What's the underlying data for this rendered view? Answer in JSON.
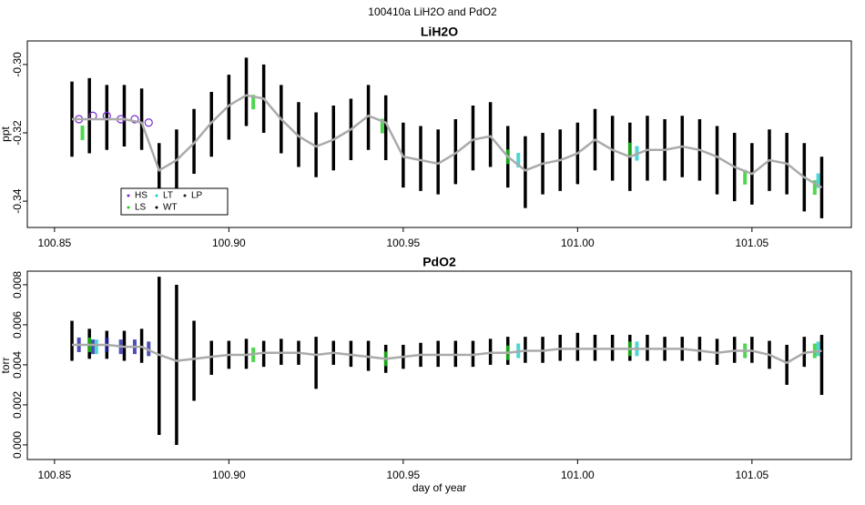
{
  "title": "100410a   LiH2O and PdO2",
  "chart_data": [
    {
      "type": "line",
      "title": "LiH2O",
      "ylabel": "ppt",
      "xlim": [
        100.8422,
        101.0785
      ],
      "xticks": [
        100.85,
        {
          "value": 100.9,
          "label": "100.90"
        },
        100.95,
        {
          "value": 101.0,
          "label": "101.00"
        },
        101.05
      ],
      "ylim": [
        -0.3477,
        -0.2931
      ],
      "yticks": [
        {
          "value": -0.3,
          "label": "-0.30"
        },
        -0.32,
        -0.34
      ],
      "color": "#aaaaaa",
      "range_color": "#000000",
      "x": [
        100.855,
        100.86,
        100.865,
        100.87,
        100.875,
        100.88,
        100.885,
        100.89,
        100.895,
        100.9,
        100.905,
        100.91,
        100.915,
        100.92,
        100.925,
        100.93,
        100.935,
        100.94,
        100.945,
        100.95,
        100.955,
        100.96,
        100.965,
        100.97,
        100.975,
        100.98,
        100.985,
        100.99,
        100.995,
        101.0,
        101.005,
        101.01,
        101.015,
        101.02,
        101.025,
        101.03,
        101.035,
        101.04,
        101.045,
        101.05,
        101.055,
        101.06,
        101.065,
        101.07
      ],
      "values": [
        -0.316,
        -0.316,
        -0.316,
        -0.316,
        -0.317,
        -0.331,
        -0.328,
        -0.323,
        -0.317,
        -0.312,
        -0.309,
        -0.31,
        -0.316,
        -0.321,
        -0.324,
        -0.322,
        -0.319,
        -0.315,
        -0.317,
        -0.327,
        -0.328,
        -0.329,
        -0.326,
        -0.322,
        -0.321,
        -0.327,
        -0.331,
        -0.329,
        -0.328,
        -0.326,
        -0.322,
        -0.325,
        -0.327,
        -0.325,
        -0.325,
        -0.324,
        -0.325,
        -0.327,
        -0.33,
        -0.332,
        -0.328,
        -0.329,
        -0.333,
        -0.336
      ],
      "low": [
        -0.327,
        -0.326,
        -0.325,
        -0.324,
        -0.325,
        -0.34,
        -0.337,
        -0.332,
        -0.327,
        -0.322,
        -0.318,
        -0.32,
        -0.326,
        -0.33,
        -0.333,
        -0.331,
        -0.328,
        -0.325,
        -0.328,
        -0.336,
        -0.337,
        -0.338,
        -0.335,
        -0.331,
        -0.33,
        -0.336,
        -0.342,
        -0.338,
        -0.337,
        -0.335,
        -0.331,
        -0.334,
        -0.337,
        -0.334,
        -0.334,
        -0.333,
        -0.334,
        -0.338,
        -0.34,
        -0.341,
        -0.337,
        -0.338,
        -0.343,
        -0.345
      ],
      "high": [
        -0.305,
        -0.304,
        -0.306,
        -0.306,
        -0.307,
        -0.323,
        -0.319,
        -0.313,
        -0.308,
        -0.303,
        -0.298,
        -0.3,
        -0.306,
        -0.311,
        -0.314,
        -0.312,
        -0.31,
        -0.306,
        -0.309,
        -0.317,
        -0.318,
        -0.319,
        -0.316,
        -0.312,
        -0.311,
        -0.318,
        -0.321,
        -0.32,
        -0.319,
        -0.317,
        -0.313,
        -0.315,
        -0.317,
        -0.315,
        -0.316,
        -0.315,
        -0.316,
        -0.318,
        -0.32,
        -0.323,
        -0.319,
        -0.32,
        -0.323,
        -0.327
      ],
      "series": [
        {
          "name": "HS",
          "color": "#7a2bd6",
          "x": [
            100.857,
            100.861,
            100.865,
            100.869,
            100.873,
            100.877
          ],
          "values": [
            -0.316,
            -0.315,
            -0.315,
            -0.316,
            -0.316,
            -0.317
          ]
        },
        {
          "name": "LS",
          "color": "#22cc22",
          "x": [
            100.858,
            100.907,
            100.944,
            100.98,
            101.015,
            101.048,
            101.068
          ],
          "values": [
            -0.32,
            -0.311,
            -0.318,
            -0.327,
            -0.325,
            -0.333,
            -0.336
          ]
        },
        {
          "name": "LT",
          "color": "#22cccc",
          "x": [
            100.983,
            101.017,
            101.069
          ],
          "values": [
            -0.328,
            -0.326,
            -0.334
          ]
        },
        {
          "name": "WT",
          "color": "#000000"
        },
        {
          "name": "LP",
          "color": "#222222"
        }
      ],
      "legend": "bottomleft"
    },
    {
      "type": "line",
      "title": "PdO2",
      "ylabel": "torr",
      "xlabel": "day of year",
      "xlim": [
        100.8422,
        101.0785
      ],
      "xticks": [
        100.85,
        {
          "value": 100.9,
          "label": "100.90"
        },
        100.95,
        {
          "value": 101.0,
          "label": "101.00"
        },
        101.05
      ],
      "ylim": [
        -0.00073,
        0.00868
      ],
      "yticks": [
        {
          "value": 0,
          "label": "0.000"
        },
        0.002,
        0.004,
        0.006,
        0.008
      ],
      "color": "#aaaaaa",
      "range_color": "#000000",
      "x": [
        100.855,
        100.86,
        100.865,
        100.87,
        100.875,
        100.88,
        100.885,
        100.89,
        100.895,
        100.9,
        100.905,
        100.91,
        100.915,
        100.92,
        100.925,
        100.93,
        100.935,
        100.94,
        100.945,
        100.95,
        100.955,
        100.96,
        100.965,
        100.97,
        100.975,
        100.98,
        100.985,
        100.99,
        100.995,
        101.0,
        101.005,
        101.01,
        101.015,
        101.02,
        101.025,
        101.03,
        101.035,
        101.04,
        101.045,
        101.05,
        101.055,
        101.06,
        101.065,
        101.07
      ],
      "values": [
        0.005,
        0.005,
        0.005,
        0.0049,
        0.0049,
        0.0045,
        0.0042,
        0.0043,
        0.0044,
        0.0045,
        0.0045,
        0.0046,
        0.0046,
        0.0046,
        0.0045,
        0.0046,
        0.0045,
        0.0044,
        0.0043,
        0.0044,
        0.0045,
        0.0045,
        0.0045,
        0.0045,
        0.0046,
        0.0046,
        0.0047,
        0.0047,
        0.0048,
        0.0048,
        0.0048,
        0.0048,
        0.0048,
        0.0048,
        0.0048,
        0.0048,
        0.0047,
        0.0046,
        0.0047,
        0.0047,
        0.0045,
        0.0041,
        0.0046,
        0.0047
      ],
      "low": [
        0.0042,
        0.0043,
        0.0043,
        0.0042,
        0.0041,
        0.0005,
        0.0,
        0.0022,
        0.0035,
        0.0038,
        0.0038,
        0.0039,
        0.004,
        0.004,
        0.0028,
        0.004,
        0.0039,
        0.0037,
        0.0036,
        0.0038,
        0.0039,
        0.0039,
        0.0039,
        0.0039,
        0.004,
        0.004,
        0.0041,
        0.0041,
        0.0042,
        0.0042,
        0.0042,
        0.0042,
        0.0042,
        0.0042,
        0.0042,
        0.0042,
        0.0042,
        0.004,
        0.0041,
        0.0041,
        0.0038,
        0.003,
        0.0039,
        0.0025
      ],
      "high": [
        0.0062,
        0.0058,
        0.0057,
        0.0057,
        0.0058,
        0.0084,
        0.008,
        0.0062,
        0.0052,
        0.0052,
        0.0053,
        0.0052,
        0.0053,
        0.0052,
        0.0054,
        0.0052,
        0.0052,
        0.0052,
        0.005,
        0.005,
        0.0051,
        0.0052,
        0.0052,
        0.0052,
        0.0053,
        0.0054,
        0.0054,
        0.0054,
        0.0055,
        0.0056,
        0.0055,
        0.0055,
        0.0055,
        0.0055,
        0.0054,
        0.0054,
        0.0054,
        0.0053,
        0.0054,
        0.0054,
        0.0052,
        0.005,
        0.0054,
        0.0055
      ],
      "series": [
        {
          "color": "#2222aa",
          "x": [
            100.857,
            100.861,
            100.865,
            100.869,
            100.873,
            100.877
          ],
          "values": [
            0.005,
            0.0049,
            0.005,
            0.0049,
            0.0049,
            0.0048
          ]
        },
        {
          "color": "#22cc22",
          "x": [
            100.86,
            100.907,
            100.945,
            100.98,
            101.015,
            101.048,
            101.068
          ],
          "values": [
            0.005,
            0.0045,
            0.0043,
            0.0046,
            0.0048,
            0.0047,
            0.0047
          ]
        },
        {
          "color": "#22cccc",
          "x": [
            100.862,
            100.983,
            101.017,
            101.069
          ],
          "values": [
            0.0049,
            0.0047,
            0.0048,
            0.0048
          ]
        }
      ]
    }
  ]
}
